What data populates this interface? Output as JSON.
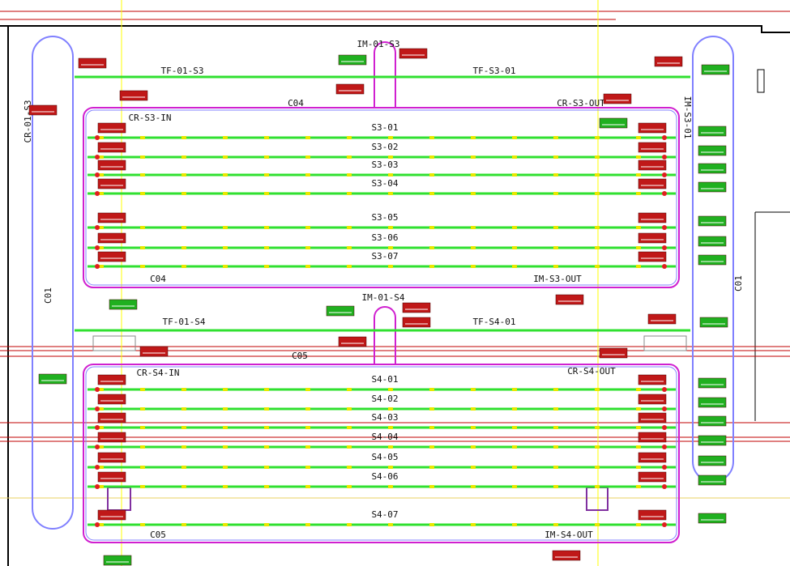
{
  "side": {
    "left_vertical": "CR-01-S3",
    "right_vertical": "IM-S3-01",
    "left_loop": "C01",
    "right_loop": "C01"
  },
  "section_s3": {
    "infeed_merge": "IM-01-S3",
    "transfer_in": "TF-01-S3",
    "transfer_out": "TF-S3-01",
    "conveyor_top": "C04",
    "crossover_out": "CR-S3-OUT",
    "crossover_in": "CR-S3-IN",
    "conveyor_bottom": "C04",
    "merge_out": "IM-S3-OUT",
    "lanes": [
      "S3-01",
      "S3-02",
      "S3-03",
      "S3-04",
      "S3-05",
      "S3-06",
      "S3-07"
    ]
  },
  "section_s4": {
    "infeed_merge": "IM-01-S4",
    "transfer_in": "TF-01-S4",
    "transfer_out": "TF-S4-01",
    "conveyor_top": "C05",
    "crossover_out": "CR-S4-OUT",
    "crossover_in": "CR-S4-IN",
    "conveyor_bottom": "C05",
    "merge_out": "IM-S4-OUT",
    "lanes": [
      "S4-01",
      "S4-02",
      "S4-03",
      "S4-04",
      "S4-05",
      "S4-06",
      "S4-07"
    ]
  }
}
